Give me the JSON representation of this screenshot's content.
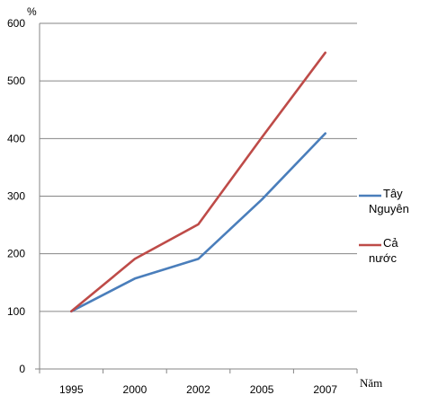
{
  "chart_data": {
    "type": "line",
    "categories": [
      "1995",
      "2000",
      "2002",
      "2005",
      "2007"
    ],
    "series": [
      {
        "name": "Tây Nguyên",
        "values": [
          100,
          157,
          191,
          294,
          409
        ],
        "color": "#4a7ebb"
      },
      {
        "name": "Cả nước",
        "values": [
          100,
          191,
          251,
          402,
          549
        ],
        "color": "#be4b48"
      }
    ],
    "ylabel": "%",
    "xlabel": "Năm",
    "ylim": [
      0,
      600
    ],
    "yticks": [
      "0",
      "100",
      "200",
      "300",
      "400",
      "500",
      "600"
    ],
    "grid": true,
    "legend": "right",
    "legend_lines": [
      [
        "Tây",
        "Nguyên"
      ],
      [
        "Cả",
        "nước"
      ]
    ]
  }
}
